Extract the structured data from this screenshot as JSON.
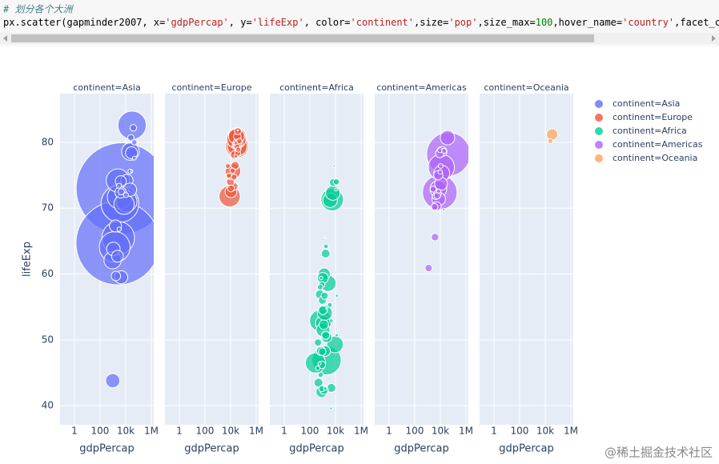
{
  "code": {
    "comment": "# 划分各个大洲",
    "tokens": [
      "px.scatter(gapminder2007, x=",
      "'gdpPercap'",
      ", y=",
      "'lifeExp'",
      ", color=",
      "'continent'",
      ",size=",
      "'pop'",
      ",size_max=",
      "100",
      ",hover_name=",
      "'country'",
      ",facet_col="
    ]
  },
  "watermark": "@稀土掘金技术社区",
  "size_max": 100,
  "chart_data": [
    {
      "type": "scatter",
      "title": "continent=Asia",
      "xlabel": "gdpPercap",
      "ylabel": "lifeExp",
      "log_x": true,
      "grid": true,
      "xlim": [
        0.075,
        1550000
      ],
      "xticks": [
        1,
        100,
        {
          "value": 10000,
          "label": "10k"
        },
        {
          "value": 1000000,
          "label": "1M"
        }
      ],
      "ylim": [
        37.1,
        87.4
      ],
      "yticks": [
        40,
        50,
        60,
        70,
        80
      ],
      "series": [
        {
          "name": "continent=Asia",
          "color": "#636efa",
          "x": [
            4959,
            2452,
            3541,
            2606,
            1391,
            31656,
            3190,
            2442,
            11606,
            7458,
            944,
            23348,
            975,
            1091,
            4471,
            12452,
            21655,
            28718,
            1593,
            3970,
            4185,
            2281,
            1714,
            39725,
            25523,
            4519,
            47143,
            47307,
            10461,
            22316,
            3096,
            3025,
            29796
          ],
          "y": [
            73.0,
            64.7,
            70.7,
            65.5,
            64.1,
            82.6,
            71.7,
            74.2,
            71.0,
            70.6,
            62.1,
            78.6,
            43.8,
            63.8,
            59.5,
            74.2,
            72.8,
            78.4,
            67.3,
            72.4,
            74.1,
            62.7,
            59.7,
            82.2,
            80.7,
            72.5,
            80.0,
            77.6,
            72.0,
            75.6,
            66.8,
            73.4,
            75.6
          ],
          "size": [
            1319,
            1110,
            224,
            169,
            150,
            127,
            91,
            85,
            69,
            65,
            47,
            49,
            32,
            29,
            27,
            24,
            28,
            23,
            23,
            20,
            19,
            22,
            14,
            7,
            6.4,
            6,
            4.5,
            2.5,
            4,
            3.2,
            2.9,
            4,
            0.7
          ]
        }
      ]
    },
    {
      "type": "scatter",
      "title": "continent=Europe",
      "xlabel": "gdpPercap",
      "log_x": true,
      "grid": true,
      "xlim": [
        0.075,
        1550000
      ],
      "xticks": [
        1,
        100,
        {
          "value": 10000,
          "label": "10k"
        },
        {
          "value": 1000000,
          "label": "1M"
        }
      ],
      "ylim": [
        37.1,
        87.4
      ],
      "yticks": [
        40,
        50,
        60,
        70,
        80
      ],
      "series": [
        {
          "name": "continent=Europe",
          "color": "#ef553b",
          "x": [
            32170,
            8458,
            30470,
            33203,
            28570,
            28821,
            15390,
            10808,
            36798,
            27538,
            20510,
            33693,
            22833,
            18009,
            9787,
            33860,
            36126,
            37506,
            10681,
            35278,
            18678,
            33207,
            49357,
            14619,
            7446,
            40676,
            5937,
            25768,
            9254,
            36181
          ],
          "y": [
            79.4,
            71.8,
            80.7,
            79.4,
            80.5,
            80.9,
            75.6,
            72.5,
            79.8,
            79.5,
            78.1,
            79.4,
            76.5,
            73.3,
            74.0,
            80.9,
            79.8,
            81.7,
            73.0,
            78.3,
            74.7,
            79.3,
            80.2,
            75.7,
            74.9,
            78.9,
            76.4,
            77.9,
            74.5,
            81.8
          ],
          "size": [
            82,
            71,
            61,
            61,
            58,
            40,
            38,
            22,
            16.6,
            10.7,
            10.6,
            10.4,
            10.2,
            10,
            10,
            9,
            8.2,
            7.6,
            7.3,
            5.5,
            5.4,
            5.2,
            4.6,
            4.5,
            4.6,
            4.1,
            3.6,
            2,
            0.7,
            0.3
          ]
        }
      ]
    },
    {
      "type": "scatter",
      "title": "continent=Africa",
      "xlabel": "gdpPercap",
      "log_x": true,
      "grid": true,
      "xlim": [
        0.075,
        1550000
      ],
      "xticks": [
        1,
        100,
        {
          "value": 10000,
          "label": "10k"
        },
        {
          "value": 1000000,
          "label": "1M"
        }
      ],
      "ylim": [
        37.1,
        87.4
      ],
      "yticks": [
        40,
        50,
        60,
        70,
        80
      ],
      "series": [
        {
          "name": "continent=Africa",
          "color": "#00cc96",
          "x": [
            2014,
            691,
            5581,
            278,
            9270,
            2602,
            1107,
            1463,
            3820,
            6223,
            1056,
            1328,
            824,
            1044,
            1545,
            2042,
            4797,
            759,
            620,
            1217,
            1043,
            1712,
            470,
            1271,
            1704,
            7093,
            943,
            863,
            430,
            1441,
            926,
            863,
            883,
            12057,
            641,
            706,
            415,
            3633,
            1803,
            4811,
            1569,
            12570,
            753,
            579,
            13206,
            10957,
            4513,
            986,
            2082,
            12154,
            7670,
            1598
          ],
          "y": [
            46.9,
            52.9,
            71.3,
            46.5,
            49.3,
            58.6,
            52.5,
            54.1,
            71.2,
            72.3,
            51.5,
            60.0,
            42.1,
            59.4,
            48.3,
            50.4,
            42.7,
            48.3,
            56.9,
            52.3,
            54.5,
            63.1,
            43.5,
            42.4,
            50.7,
            73.9,
            56.0,
            46.2,
            49.6,
            56.7,
            48.2,
            42.6,
            58.4,
            74.0,
            58.0,
            44.7,
            45.7,
            55.3,
            64.2,
            52.9,
            42.6,
            50.7,
            59.4,
            46.4,
            56.7,
            72.8,
            39.6,
            65.2,
            54.8,
            51.6,
            76.4,
            65.5
          ],
          "size": [
            135,
            76.5,
            80,
            64.6,
            44,
            42,
            38,
            35.6,
            33.8,
            33.3,
            29.2,
            22.9,
            19.95,
            19.2,
            18,
            17.7,
            12.4,
            13.3,
            12.9,
            14.3,
            12,
            12.3,
            12.3,
            11.7,
            10.2,
            10.3,
            9.9,
            8.9,
            8.4,
            8.1,
            9.1,
            6.1,
            5.7,
            6,
            4.9,
            4.4,
            3.2,
            3.8,
            3.3,
            2.1,
            2.0,
            1.6,
            1.7,
            1.5,
            1.45,
            1.25,
            1.13,
            0.71,
            0.5,
            0.55,
            0.8,
            0.2
          ]
        }
      ]
    },
    {
      "type": "scatter",
      "title": "continent=Americas",
      "xlabel": "gdpPercap",
      "log_x": true,
      "grid": true,
      "xlim": [
        0.075,
        1550000
      ],
      "xticks": [
        1,
        100,
        {
          "value": 10000,
          "label": "10k"
        },
        {
          "value": 1000000,
          "label": "1M"
        }
      ],
      "ylim": [
        37.1,
        87.4
      ],
      "yticks": [
        40,
        50,
        60,
        70,
        80
      ],
      "series": [
        {
          "name": "continent=Americas",
          "color": "#ab63fa",
          "x": [
            42952,
            9066,
            11978,
            7007,
            12779,
            36319,
            7409,
            11416,
            13172,
            6873,
            5186,
            8948,
            3822,
            1202,
            6025,
            3548,
            4173,
            5728,
            2749,
            9645,
            19329,
            10611,
            9809,
            7321,
            18009
          ],
          "y": [
            78.2,
            72.4,
            76.2,
            72.9,
            75.3,
            80.7,
            71.4,
            73.7,
            78.6,
            75.0,
            70.3,
            78.3,
            65.6,
            60.9,
            72.2,
            70.2,
            71.8,
            71.9,
            72.9,
            78.8,
            78.7,
            76.4,
            75.5,
            72.6,
            69.8
          ],
          "size": [
            301,
            190,
            108,
            44,
            40,
            33,
            28.7,
            26,
            16.3,
            13.8,
            12.6,
            11.4,
            9.1,
            8.5,
            9.3,
            7.5,
            6.7,
            6.9,
            5.7,
            4.1,
            3.9,
            3.4,
            3.2,
            2.8,
            1.06
          ]
        }
      ]
    },
    {
      "type": "scatter",
      "title": "continent=Oceania",
      "xlabel": "gdpPercap",
      "log_x": true,
      "grid": true,
      "xlim": [
        0.075,
        1550000
      ],
      "xticks": [
        1,
        100,
        {
          "value": 10000,
          "label": "10k"
        },
        {
          "value": 1000000,
          "label": "1M"
        }
      ],
      "ylim": [
        37.1,
        87.4
      ],
      "yticks": [
        40,
        50,
        60,
        70,
        80
      ],
      "series": [
        {
          "name": "continent=Oceania",
          "color": "#ffa15a",
          "x": [
            34435,
            25185
          ],
          "y": [
            81.2,
            80.2
          ],
          "size": [
            20.4,
            4.1
          ]
        }
      ]
    }
  ]
}
